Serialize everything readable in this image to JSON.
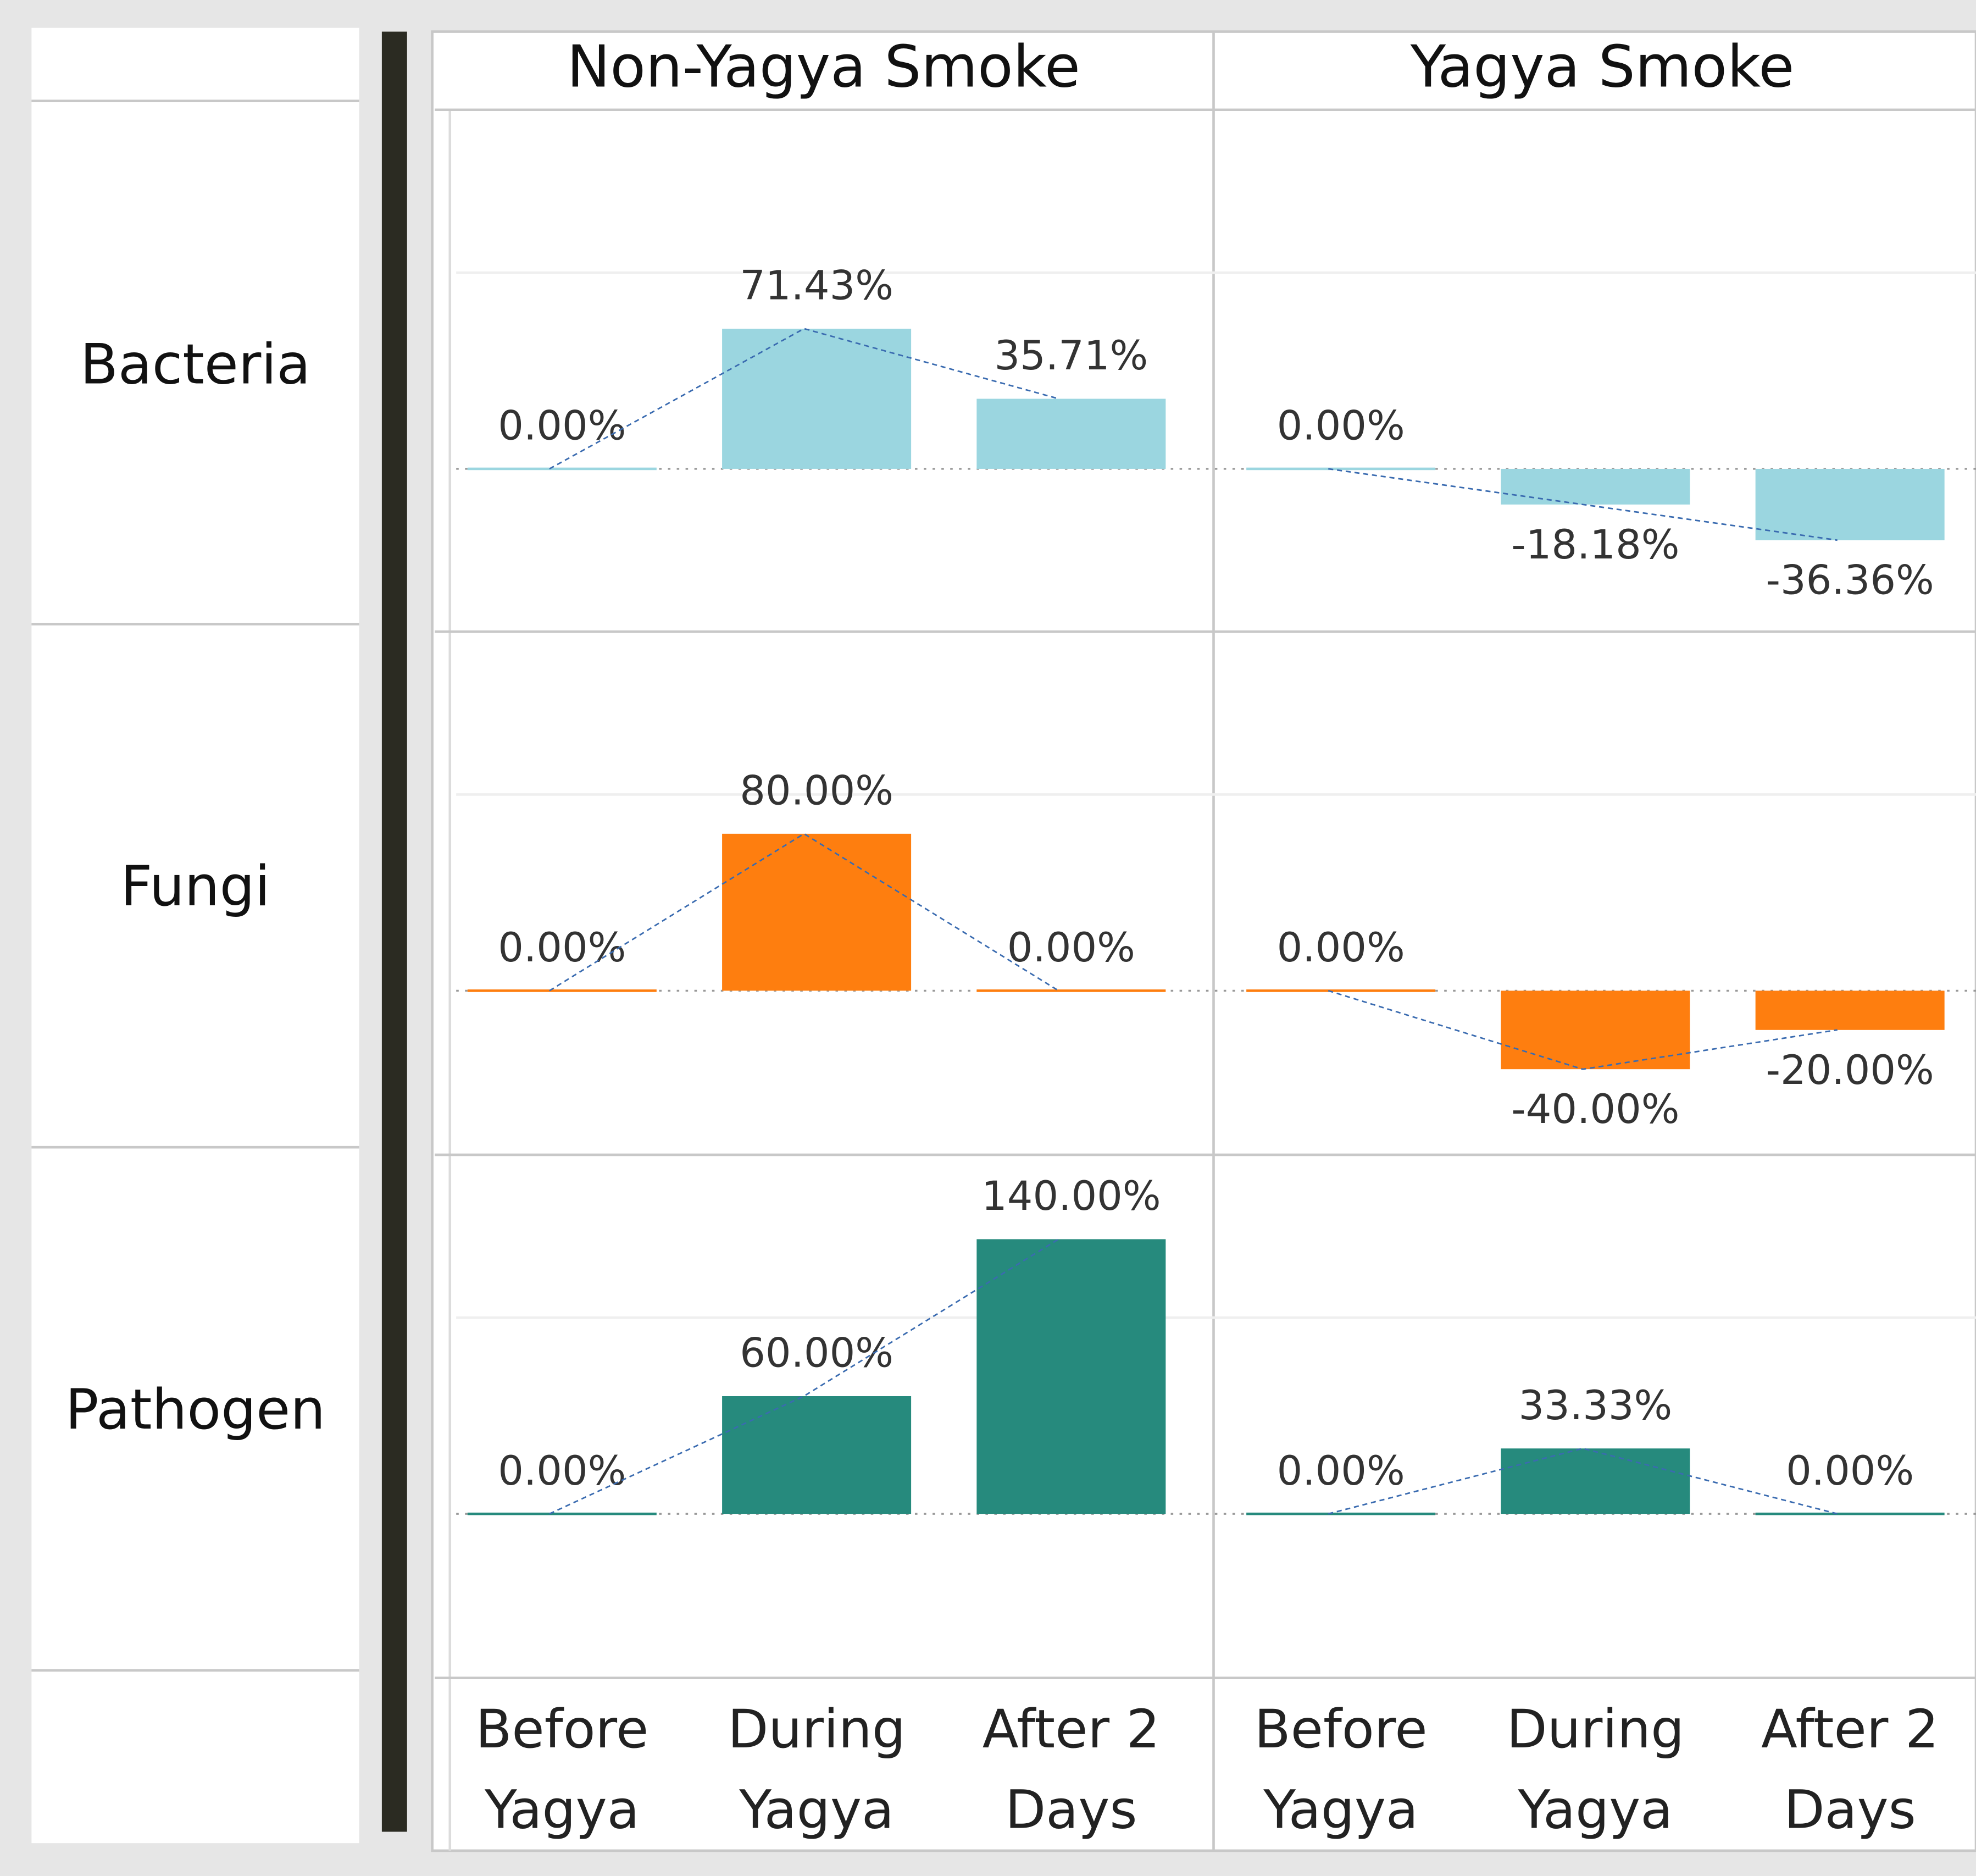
{
  "chart_data": {
    "type": "bar",
    "columns": [
      "Non-Yagya Smoke",
      "Yagya Smoke"
    ],
    "categories": [
      "Before Yagya",
      "During Yagya",
      "After 2 Days"
    ],
    "ylim": [
      -83,
      183
    ],
    "yticks": [
      0,
      100
    ],
    "grid": true,
    "series": [
      {
        "name": "Bacteria",
        "color": "#9bd6e0",
        "values": [
          [
            0,
            71.43,
            35.71
          ],
          [
            0,
            -18.18,
            -36.36
          ]
        ],
        "value_labels": [
          [
            "0.00%",
            "71.43%",
            "35.71%"
          ],
          [
            "0.00%",
            "-18.18%",
            "-36.36%"
          ]
        ]
      },
      {
        "name": "Fungi",
        "color": "#fe7e0f",
        "values": [
          [
            0,
            80,
            0
          ],
          [
            0,
            -40,
            -20
          ]
        ],
        "value_labels": [
          [
            "0.00%",
            "80.00%",
            "0.00%"
          ],
          [
            "0.00%",
            "-40.00%",
            "-20.00%"
          ]
        ]
      },
      {
        "name": "Pathogen",
        "color": "#268a7d",
        "values": [
          [
            0,
            60,
            140
          ],
          [
            0,
            33.33,
            0
          ]
        ],
        "value_labels": [
          [
            "0.00%",
            "60.00%",
            "140.00%"
          ],
          [
            "0.00%",
            "33.33%",
            "0.00%"
          ]
        ]
      }
    ]
  }
}
